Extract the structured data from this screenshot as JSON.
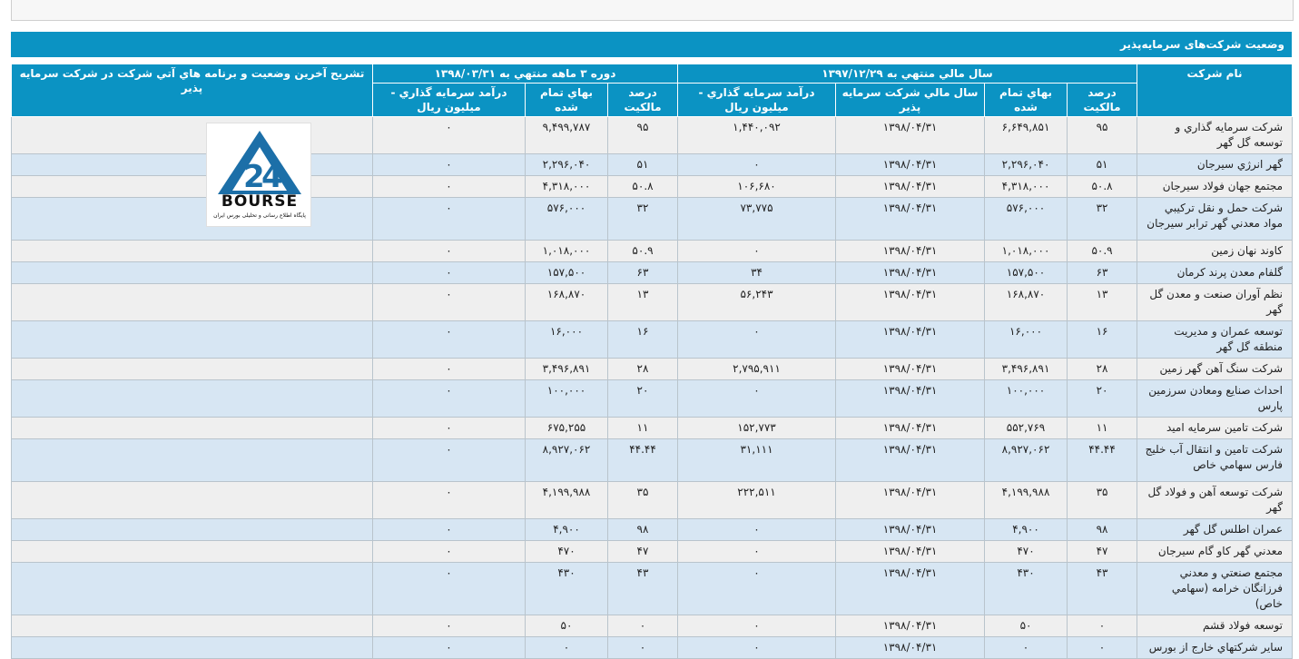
{
  "section_title": "وضعیت شرکت‌های سرمایه‌پذیر",
  "headers": {
    "company": "نام شرکت",
    "fy_group": "سال مالي منتهي به ۱۳۹۷/۱۲/۲۹",
    "period_group": "دوره ۳ ماهه منتهي به ۱۳۹۸/۰۳/۳۱",
    "desc": "تشريح آخرين وضعيت و برنامه هاي آتي شرکت در شرکت سرمايه پذير",
    "ownership": "درصد مالکيت",
    "cost": "بهاي تمام شده",
    "fy_year": "سال مالي شرکت سرمايه پذير",
    "income": "درآمد سرمايه گذاري - ميليون ريال",
    "ownership2": "درصد مالکيت",
    "cost2": "بهاي تمام شده",
    "income2": "درآمد سرمايه گذاري - ميليون ريال"
  },
  "logo": {
    "text": "BOURSE",
    "subtitle": "پایگاه اطلاع رسانی و تحلیلی بورس ایران",
    "icon": "bourse24-logo",
    "color": "#1c6fa8"
  },
  "rows": [
    {
      "name": "شرکت سرمايه گذاري و توسعه گل گهر",
      "own": "۹۵",
      "cost": "۶,۶۴۹,۸۵۱",
      "fy": "۱۳۹۸/۰۴/۳۱",
      "income": "۱,۴۴۰,۰۹۲",
      "own2": "۹۵",
      "cost2": "۹,۴۹۹,۷۸۷",
      "income2": "۰",
      "desc": ""
    },
    {
      "name": "گهر انرژي سيرجان",
      "own": "۵۱",
      "cost": "۲,۲۹۶,۰۴۰",
      "fy": "۱۳۹۸/۰۴/۳۱",
      "income": "۰",
      "own2": "۵۱",
      "cost2": "۲,۲۹۶,۰۴۰",
      "income2": "۰",
      "desc": ""
    },
    {
      "name": "مجتمع جهان فولاد سيرجان",
      "own": "۵۰.۸",
      "cost": "۴,۳۱۸,۰۰۰",
      "fy": "۱۳۹۸/۰۴/۳۱",
      "income": "۱۰۶,۶۸۰",
      "own2": "۵۰.۸",
      "cost2": "۴,۳۱۸,۰۰۰",
      "income2": "۰",
      "desc": ""
    },
    {
      "name": "شرکت حمل و نقل ترکيبي مواد معدني گهر ترابر سيرجان",
      "own": "۳۲",
      "cost": "۵۷۶,۰۰۰",
      "fy": "۱۳۹۸/۰۴/۳۱",
      "income": "۷۳,۷۷۵",
      "own2": "۳۲",
      "cost2": "۵۷۶,۰۰۰",
      "income2": "۰",
      "desc": "",
      "tall": true
    },
    {
      "name": "کاوند نهان زمين",
      "own": "۵۰.۹",
      "cost": "۱,۰۱۸,۰۰۰",
      "fy": "۱۳۹۸/۰۴/۳۱",
      "income": "۰",
      "own2": "۵۰.۹",
      "cost2": "۱,۰۱۸,۰۰۰",
      "income2": "۰",
      "desc": ""
    },
    {
      "name": "گلفام معدن پرند کرمان",
      "own": "۶۳",
      "cost": "۱۵۷,۵۰۰",
      "fy": "۱۳۹۸/۰۴/۳۱",
      "income": "۳۴",
      "own2": "۶۳",
      "cost2": "۱۵۷,۵۰۰",
      "income2": "۰",
      "desc": ""
    },
    {
      "name": "نظم آوران صنعت و معدن گل گهر",
      "own": "۱۳",
      "cost": "۱۶۸,۸۷۰",
      "fy": "۱۳۹۸/۰۴/۳۱",
      "income": "۵۶,۲۴۳",
      "own2": "۱۳",
      "cost2": "۱۶۸,۸۷۰",
      "income2": "۰",
      "desc": ""
    },
    {
      "name": "توسعه عمران و مديريت منطقه گل گهر",
      "own": "۱۶",
      "cost": "۱۶,۰۰۰",
      "fy": "۱۳۹۸/۰۴/۳۱",
      "income": "۰",
      "own2": "۱۶",
      "cost2": "۱۶,۰۰۰",
      "income2": "۰",
      "desc": ""
    },
    {
      "name": "شرکت سنگ آهن گهر زمين",
      "own": "۲۸",
      "cost": "۳,۴۹۶,۸۹۱",
      "fy": "۱۳۹۸/۰۴/۳۱",
      "income": "۲,۷۹۵,۹۱۱",
      "own2": "۲۸",
      "cost2": "۳,۴۹۶,۸۹۱",
      "income2": "۰",
      "desc": ""
    },
    {
      "name": "احداث صنايع ومعادن سرزمين پارس",
      "own": "۲۰",
      "cost": "۱۰۰,۰۰۰",
      "fy": "۱۳۹۸/۰۴/۳۱",
      "income": "۰",
      "own2": "۲۰",
      "cost2": "۱۰۰,۰۰۰",
      "income2": "۰",
      "desc": ""
    },
    {
      "name": "شرکت تامين سرمايه اميد",
      "own": "۱۱",
      "cost": "۵۵۲,۷۶۹",
      "fy": "۱۳۹۸/۰۴/۳۱",
      "income": "۱۵۲,۷۷۳",
      "own2": "۱۱",
      "cost2": "۶۷۵,۲۵۵",
      "income2": "۰",
      "desc": ""
    },
    {
      "name": "شرکت تامين و انتقال آب خليج فارس سهامي خاص",
      "own": "۴۴.۴۴",
      "cost": "۸,۹۲۷,۰۶۲",
      "fy": "۱۳۹۸/۰۴/۳۱",
      "income": "۳۱,۱۱۱",
      "own2": "۴۴.۴۴",
      "cost2": "۸,۹۲۷,۰۶۲",
      "income2": "۰",
      "desc": "",
      "tall": true
    },
    {
      "name": "شرکت توسعه آهن و فولاد گل گهر",
      "own": "۳۵",
      "cost": "۴,۱۹۹,۹۸۸",
      "fy": "۱۳۹۸/۰۴/۳۱",
      "income": "۲۲۲,۵۱۱",
      "own2": "۳۵",
      "cost2": "۴,۱۹۹,۹۸۸",
      "income2": "۰",
      "desc": ""
    },
    {
      "name": "عمران اطلس گل گهر",
      "own": "۹۸",
      "cost": "۴,۹۰۰",
      "fy": "۱۳۹۸/۰۴/۳۱",
      "income": "۰",
      "own2": "۹۸",
      "cost2": "۴,۹۰۰",
      "income2": "۰",
      "desc": ""
    },
    {
      "name": "معدني گهر کاو گام سيرجان",
      "own": "۴۷",
      "cost": "۴۷۰",
      "fy": "۱۳۹۸/۰۴/۳۱",
      "income": "۰",
      "own2": "۴۷",
      "cost2": "۴۷۰",
      "income2": "۰",
      "desc": ""
    },
    {
      "name": "مجتمع صنعتي و معدني فرزانگان خرامه (سهامي خاص)",
      "own": "۴۳",
      "cost": "۴۳۰",
      "fy": "۱۳۹۸/۰۴/۳۱",
      "income": "۰",
      "own2": "۴۳",
      "cost2": "۴۳۰",
      "income2": "۰",
      "desc": "",
      "tall": true
    },
    {
      "name": "توسعه فولاد قشم",
      "own": "۰",
      "cost": "۵۰",
      "fy": "۱۳۹۸/۰۴/۳۱",
      "income": "۰",
      "own2": "۰",
      "cost2": "۵۰",
      "income2": "۰",
      "desc": ""
    },
    {
      "name": "ساير شرکتهاي خارج از بورس",
      "own": "۰",
      "cost": "۰",
      "fy": "۱۳۹۸/۰۴/۳۱",
      "income": "۰",
      "own2": "۰",
      "cost2": "۰",
      "income2": "۰",
      "desc": ""
    }
  ]
}
